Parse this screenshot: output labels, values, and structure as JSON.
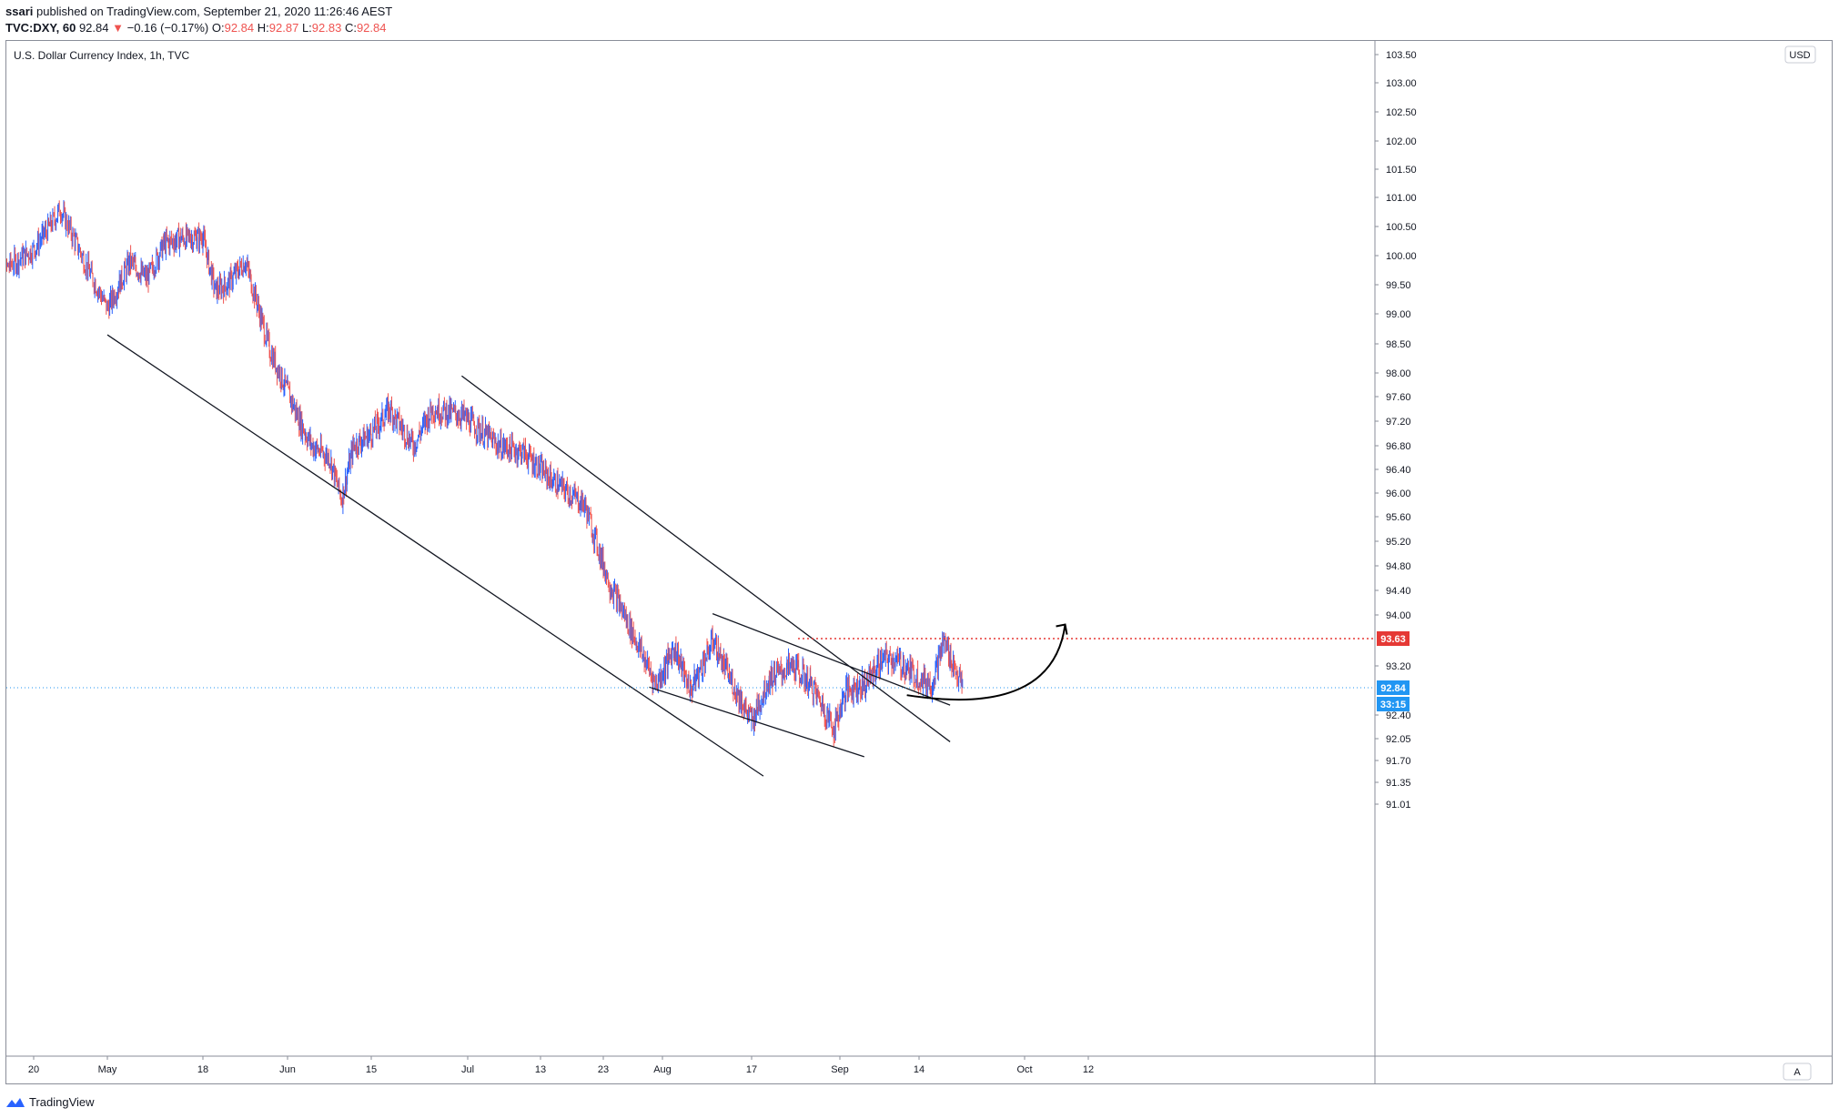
{
  "header": {
    "author": "ssari",
    "published_text": "published on TradingView.com, September 21, 2020 11:26:46 AEST",
    "symbol": "TVC:DXY, 60",
    "last": "92.84",
    "change": "−0.16 (−0.17%)",
    "o_label": "O:",
    "o_val": "92.84",
    "h_label": "H:",
    "h_val": "92.87",
    "l_label": "L:",
    "l_val": "92.83",
    "c_label": "C:",
    "c_val": "92.84"
  },
  "chart_title": "U.S. Dollar Currency Index, 1h, TVC",
  "currency_badge": "USD",
  "auto_button": "A",
  "footer_brand": "TradingView",
  "colors": {
    "up": "#2962ff",
    "down": "#ef5350",
    "resistance": "#e53935",
    "current": "#2196f3"
  },
  "chart_data": {
    "type": "candlestick",
    "title": "U.S. Dollar Currency Index, 1h, TVC",
    "y_ticks": [
      "103.50",
      "103.00",
      "102.50",
      "102.00",
      "101.50",
      "101.00",
      "100.50",
      "100.00",
      "99.50",
      "99.00",
      "98.50",
      "98.00",
      "97.60",
      "97.20",
      "96.80",
      "96.40",
      "96.00",
      "95.60",
      "95.20",
      "94.80",
      "94.40",
      "94.00",
      "93.20",
      "92.40",
      "92.05",
      "91.70",
      "91.35",
      "91.01"
    ],
    "x_ticks": [
      "20",
      "May",
      "18",
      "Jun",
      "15",
      "Jul",
      "13",
      "23",
      "Aug",
      "17",
      "Sep",
      "14",
      "Oct",
      "12"
    ],
    "x_range": [
      "2020-04-14",
      "2020-10-16"
    ],
    "resistance_level": "93.63",
    "current_price": "92.84",
    "countdown": "33:15",
    "price_path": [
      {
        "date": "2020-04-14",
        "value": 99.1
      },
      {
        "date": "2020-04-16",
        "value": 99.8
      },
      {
        "date": "2020-04-20",
        "value": 100.1
      },
      {
        "date": "2020-04-23",
        "value": 100.6
      },
      {
        "date": "2020-04-24",
        "value": 100.8
      },
      {
        "date": "2020-04-28",
        "value": 99.8
      },
      {
        "date": "2020-05-01",
        "value": 99.1
      },
      {
        "date": "2020-05-05",
        "value": 99.9
      },
      {
        "date": "2020-05-08",
        "value": 99.6
      },
      {
        "date": "2020-05-11",
        "value": 100.2
      },
      {
        "date": "2020-05-14",
        "value": 100.3
      },
      {
        "date": "2020-05-18",
        "value": 100.3
      },
      {
        "date": "2020-05-20",
        "value": 99.4
      },
      {
        "date": "2020-05-22",
        "value": 99.5
      },
      {
        "date": "2020-05-25",
        "value": 99.9
      },
      {
        "date": "2020-05-29",
        "value": 98.4
      },
      {
        "date": "2020-06-03",
        "value": 97.2
      },
      {
        "date": "2020-06-05",
        "value": 96.8
      },
      {
        "date": "2020-06-08",
        "value": 96.6
      },
      {
        "date": "2020-06-10",
        "value": 95.9
      },
      {
        "date": "2020-06-12",
        "value": 96.8
      },
      {
        "date": "2020-06-15",
        "value": 97.0
      },
      {
        "date": "2020-06-18",
        "value": 97.4
      },
      {
        "date": "2020-06-22",
        "value": 96.8
      },
      {
        "date": "2020-06-25",
        "value": 97.4
      },
      {
        "date": "2020-06-30",
        "value": 97.3
      },
      {
        "date": "2020-07-06",
        "value": 96.8
      },
      {
        "date": "2020-07-10",
        "value": 96.7
      },
      {
        "date": "2020-07-15",
        "value": 96.2
      },
      {
        "date": "2020-07-20",
        "value": 95.8
      },
      {
        "date": "2020-07-24",
        "value": 94.5
      },
      {
        "date": "2020-07-28",
        "value": 93.6
      },
      {
        "date": "2020-07-31",
        "value": 92.9
      },
      {
        "date": "2020-08-03",
        "value": 93.5
      },
      {
        "date": "2020-08-06",
        "value": 92.8
      },
      {
        "date": "2020-08-10",
        "value": 93.6
      },
      {
        "date": "2020-08-13",
        "value": 93.0
      },
      {
        "date": "2020-08-17",
        "value": 92.3
      },
      {
        "date": "2020-08-20",
        "value": 93.0
      },
      {
        "date": "2020-08-24",
        "value": 93.2
      },
      {
        "date": "2020-08-27",
        "value": 92.9
      },
      {
        "date": "2020-08-31",
        "value": 92.2
      },
      {
        "date": "2020-09-02",
        "value": 92.8
      },
      {
        "date": "2020-09-05",
        "value": 92.9
      },
      {
        "date": "2020-09-08",
        "value": 93.3
      },
      {
        "date": "2020-09-10",
        "value": 93.3
      },
      {
        "date": "2020-09-14",
        "value": 93.0
      },
      {
        "date": "2020-09-16",
        "value": 92.9
      },
      {
        "date": "2020-09-18",
        "value": 93.6
      },
      {
        "date": "2020-09-21",
        "value": 92.84
      }
    ]
  }
}
